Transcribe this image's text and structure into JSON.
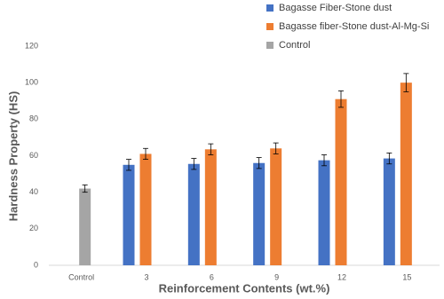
{
  "chart_data": {
    "type": "bar",
    "x_label": "Reinforcement Contents (wt.%)",
    "y_label": "Hardness Property (HS)",
    "categories": [
      "Control",
      "3",
      "6",
      "9",
      "12",
      "15"
    ],
    "series": [
      {
        "name": "Bagasse Fiber-Stone dust",
        "color": "#4472c4",
        "values": [
          null,
          55,
          55.5,
          56,
          57.5,
          58.5
        ],
        "errors": [
          null,
          3,
          3,
          3,
          3,
          3
        ]
      },
      {
        "name": "Bagasse fiber-Stone dust-Al-Mg-Si",
        "color": "#ed7d31",
        "values": [
          null,
          61,
          63.5,
          64,
          91,
          100
        ],
        "errors": [
          null,
          3,
          3,
          3,
          4.5,
          5
        ]
      },
      {
        "name": "Control",
        "color": "#a5a5a5",
        "values": [
          42,
          null,
          null,
          null,
          null,
          null
        ],
        "errors": [
          2,
          null,
          null,
          null,
          null,
          null
        ]
      }
    ],
    "ylim": [
      0,
      120
    ],
    "yticks": [
      0,
      20,
      40,
      60,
      80,
      100,
      120
    ],
    "grid": false
  }
}
